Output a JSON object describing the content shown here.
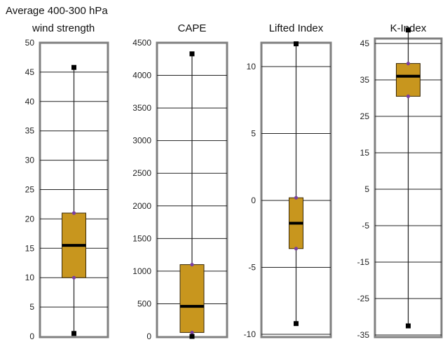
{
  "chart_data": [
    {
      "type": "box",
      "title_lines": [
        "Average 400-300 hPa",
        "wind strength"
      ],
      "ylim": [
        0,
        50
      ],
      "ticks": [
        "0",
        "5",
        "10",
        "15",
        "20",
        "25",
        "30",
        "35",
        "40",
        "45",
        "50"
      ],
      "tick_values": [
        0,
        5,
        10,
        15,
        20,
        25,
        30,
        35,
        40,
        45,
        50
      ],
      "grid": true,
      "box": {
        "min": 0.5,
        "q1": 10,
        "median": 15.5,
        "q3": 21,
        "max": 45.8
      }
    },
    {
      "type": "box",
      "title_lines": [
        "CAPE"
      ],
      "ylim": [
        0,
        4500
      ],
      "ticks": [
        "0",
        "500",
        "1000",
        "1500",
        "2000",
        "2500",
        "3000",
        "3500",
        "4000",
        "4500"
      ],
      "tick_values": [
        0,
        500,
        1000,
        1500,
        2000,
        2500,
        3000,
        3500,
        4000,
        4500
      ],
      "grid": true,
      "box": {
        "min": 0,
        "q1": 60,
        "median": 460,
        "q3": 1100,
        "max": 4330
      }
    },
    {
      "type": "box",
      "title_lines": [
        "Lifted Index"
      ],
      "ylim": [
        -10,
        12
      ],
      "ticks": [
        "-10",
        "-5",
        "0",
        "5",
        "10"
      ],
      "tick_values": [
        -10,
        -5,
        0,
        5,
        10
      ],
      "grid": true,
      "box": {
        "min": -9.2,
        "q1": -3.6,
        "median": -1.7,
        "q3": 0.2,
        "max": 11.7
      }
    },
    {
      "type": "box",
      "title_lines": [
        "K-Index"
      ],
      "ylim": [
        -35,
        50
      ],
      "ticks": [
        "-35",
        "-25",
        "-15",
        "-5",
        "5",
        "15",
        "25",
        "35",
        "45"
      ],
      "tick_values": [
        -35,
        -25,
        -15,
        -5,
        5,
        15,
        25,
        35,
        45
      ],
      "grid": true,
      "box": {
        "min": -32.5,
        "q1": 30.5,
        "median": 36,
        "q3": 39.5,
        "max": 48.7
      }
    }
  ],
  "colors": {
    "box_fill": "#c8961e",
    "box_stroke": "#3a2a08",
    "median": "#000000",
    "whisker": "#222222",
    "quartile_marker": "#7a3fa0",
    "extreme_marker": "#000000",
    "frame": "#808080",
    "grid": "#222222"
  }
}
